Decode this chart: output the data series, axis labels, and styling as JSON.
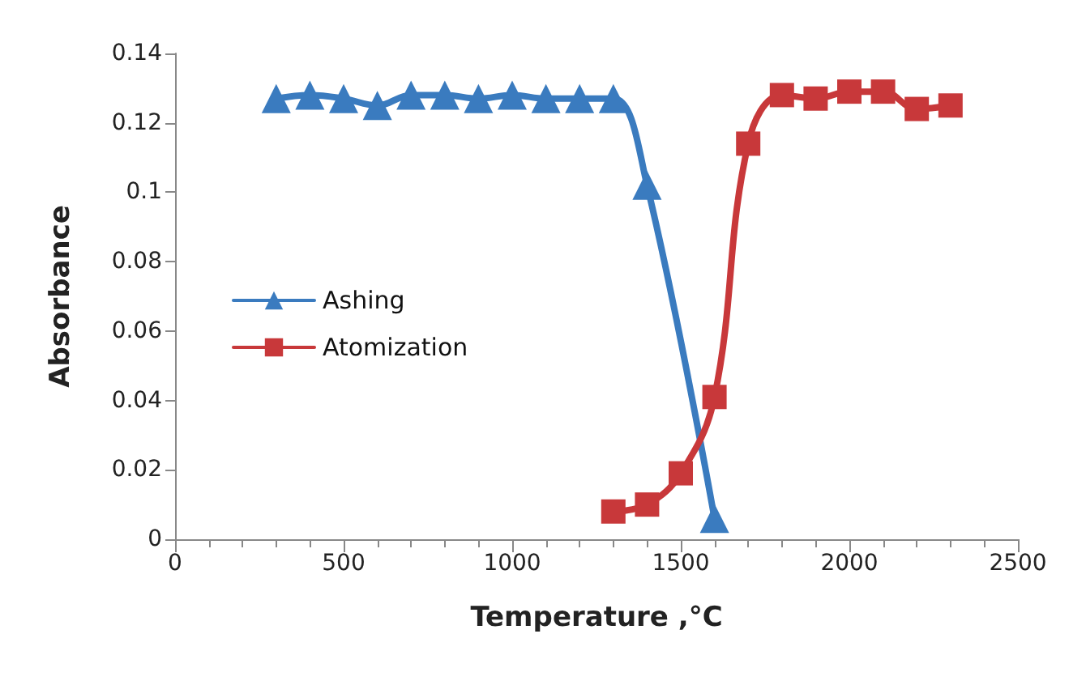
{
  "chart_data": {
    "type": "line",
    "xlabel": "Temperature ,°C",
    "ylabel": "Absorbance",
    "xlim": [
      0,
      2500
    ],
    "xticks": [
      0,
      500,
      1000,
      1500,
      2000,
      2500
    ],
    "ylim": [
      0,
      0.14
    ],
    "yticks": [
      0,
      0.02,
      0.04,
      0.06,
      0.08,
      0.1,
      0.12,
      0.14
    ],
    "grid": false,
    "legend": "center left",
    "series": [
      {
        "name": "Ashing",
        "color": "#3a7bbf",
        "marker": "triangle",
        "x": [
          300,
          400,
          500,
          600,
          700,
          800,
          900,
          1000,
          1100,
          1200,
          1300,
          1400,
          1500,
          1600
        ],
        "values": [
          0.127,
          0.128,
          0.127,
          0.125,
          0.128,
          0.128,
          0.127,
          0.128,
          0.127,
          0.127,
          0.127,
          0.102,
          null,
          0.006
        ]
      },
      {
        "name": "Atomization",
        "color": "#c8383a",
        "marker": "square",
        "x": [
          1300,
          1400,
          1500,
          1600,
          1700,
          1800,
          1900,
          2000,
          2100,
          2200,
          2300
        ],
        "values": [
          0.008,
          0.01,
          0.019,
          0.041,
          0.114,
          0.128,
          0.127,
          0.129,
          0.129,
          0.124,
          0.125
        ]
      }
    ]
  }
}
